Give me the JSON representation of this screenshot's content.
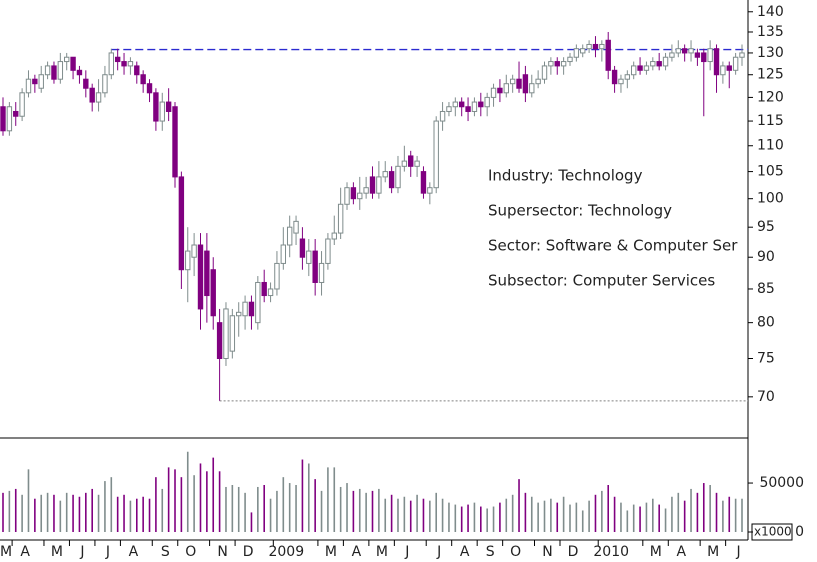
{
  "chart_data": {
    "type": "candlestick",
    "categories": [
      "M",
      null,
      null,
      "A",
      null,
      null,
      null,
      null,
      "M",
      null,
      null,
      null,
      "J",
      null,
      null,
      null,
      "J",
      null,
      null,
      null,
      "A",
      null,
      null,
      null,
      null,
      "S",
      null,
      null,
      null,
      "O",
      null,
      null,
      null,
      null,
      "N",
      null,
      null,
      null,
      "D",
      null,
      null,
      null,
      null,
      null,
      "2009",
      null,
      null,
      null,
      null,
      null,
      null,
      "M",
      null,
      null,
      null,
      "A",
      null,
      null,
      null,
      "M",
      null,
      null,
      null,
      "J",
      null,
      null,
      null,
      null,
      "J",
      null,
      null,
      null,
      "A",
      null,
      null,
      null,
      "S",
      null,
      null,
      null,
      "O",
      null,
      null,
      null,
      null,
      "N",
      null,
      null,
      null,
      "D",
      null,
      null,
      null,
      null,
      null,
      "2010",
      null,
      null,
      null,
      null,
      null,
      null,
      "M",
      null,
      null,
      null,
      "A",
      null,
      null,
      null,
      null,
      "M",
      null,
      null,
      null,
      "J",
      null
    ],
    "open": [
      118,
      113,
      117,
      116,
      121,
      124,
      122,
      125,
      127,
      124,
      128,
      129,
      126,
      124,
      122,
      119,
      121,
      125,
      129,
      128,
      127,
      127,
      125,
      123,
      121,
      115,
      119,
      118,
      104,
      88,
      90,
      92,
      91,
      88,
      80,
      75,
      76,
      81,
      81,
      83,
      80,
      86,
      84,
      85,
      89,
      92,
      94,
      93,
      89,
      91,
      86,
      89,
      93,
      94,
      99,
      102,
      100,
      101,
      104,
      101,
      104,
      105,
      102,
      106,
      108,
      106,
      105,
      101,
      102,
      115,
      117,
      118,
      119,
      118,
      117,
      119,
      118,
      120,
      122,
      121,
      123,
      124,
      125,
      121,
      123,
      124,
      127,
      128,
      127,
      128,
      129,
      130,
      131,
      132,
      131,
      133,
      126,
      123,
      124,
      125,
      127,
      126,
      127,
      128,
      127,
      129,
      130,
      131,
      130,
      130,
      130,
      128,
      131,
      125,
      127,
      126,
      129
    ],
    "high": [
      120,
      119,
      119,
      122,
      126,
      125,
      127,
      128,
      128,
      130,
      130,
      129,
      127,
      126,
      123,
      124,
      127,
      131,
      131,
      130,
      129,
      128,
      126,
      124,
      122,
      121,
      122,
      119,
      105,
      95,
      94,
      94,
      94,
      90,
      82,
      83,
      82,
      83,
      84,
      84,
      87,
      88,
      86,
      91,
      95,
      97,
      97,
      95,
      93,
      93,
      91,
      94,
      97,
      102,
      103,
      103,
      104,
      104,
      106,
      107,
      107,
      106,
      108,
      110,
      109,
      108,
      106,
      103,
      116,
      119,
      119,
      120,
      120,
      120,
      120,
      121,
      121,
      123,
      124,
      125,
      125,
      128,
      127,
      125,
      126,
      128,
      129,
      129,
      129,
      130,
      132,
      132,
      133,
      134,
      133,
      135,
      127,
      125,
      126,
      128,
      129,
      128,
      129,
      130,
      130,
      132,
      133,
      132,
      133,
      131,
      131,
      133,
      132,
      128,
      128,
      130,
      132
    ],
    "low": [
      112,
      112,
      114,
      115,
      120,
      121,
      121,
      124,
      123,
      123,
      126,
      124,
      123,
      120,
      117,
      117,
      120,
      124,
      126,
      125,
      125,
      123,
      121,
      119,
      113,
      113,
      115,
      102,
      85,
      83,
      87,
      79,
      80,
      79,
      69.5,
      74,
      75,
      78,
      79,
      79,
      79,
      83,
      83,
      84,
      88,
      90,
      92,
      88,
      87,
      84,
      84,
      88,
      92,
      93,
      98,
      99,
      98,
      100,
      100,
      100,
      103,
      101,
      101,
      105,
      104,
      104,
      100,
      99,
      101,
      113,
      116,
      116,
      116,
      115,
      116,
      116,
      116,
      118,
      119,
      120,
      121,
      121,
      119,
      120,
      122,
      123,
      125,
      125,
      125,
      127,
      128,
      129,
      130,
      129,
      128,
      124,
      121,
      121,
      122,
      124,
      125,
      125,
      126,
      126,
      126,
      128,
      129,
      128,
      128,
      127,
      116,
      126,
      121,
      123,
      122,
      125,
      127
    ],
    "close": [
      113,
      118,
      116,
      121,
      124,
      123,
      125,
      127,
      124,
      128,
      129,
      126,
      125,
      122,
      119,
      121,
      125,
      130,
      128,
      127,
      128,
      125,
      123,
      121,
      115,
      119,
      117,
      104,
      88,
      91,
      92,
      82,
      84,
      81,
      75,
      82,
      81,
      81.5,
      83,
      81,
      86,
      84,
      85,
      89,
      92,
      95,
      96,
      90,
      91,
      86,
      89,
      93,
      94,
      99,
      102,
      100,
      101,
      102,
      101,
      104,
      105,
      102,
      106,
      107,
      106,
      107,
      101,
      102,
      115,
      117,
      118,
      119,
      118,
      117,
      119,
      118,
      120,
      122,
      121,
      123,
      124,
      122,
      121,
      123,
      124,
      127,
      128,
      127,
      128,
      129,
      131,
      131,
      132,
      131,
      132,
      126,
      123,
      124,
      125,
      127,
      126,
      127,
      128,
      127,
      129,
      130,
      131,
      130,
      131,
      129,
      128,
      131,
      125,
      127,
      126,
      129,
      130
    ],
    "volume": [
      40000,
      42000,
      44000,
      38000,
      64000,
      34000,
      38000,
      40000,
      38000,
      32000,
      40000,
      38000,
      36000,
      40000,
      44000,
      38000,
      52000,
      56000,
      36000,
      38000,
      32000,
      34000,
      36000,
      34000,
      56000,
      44000,
      66000,
      64000,
      56000,
      82000,
      58000,
      70000,
      62000,
      76000,
      62000,
      46000,
      48000,
      46000,
      40000,
      20000,
      46000,
      48000,
      34000,
      42000,
      56000,
      50000,
      48000,
      74000,
      70000,
      54000,
      42000,
      66000,
      66000,
      46000,
      50000,
      42000,
      44000,
      40000,
      42000,
      44000,
      34000,
      38000,
      34000,
      36000,
      32000,
      38000,
      34000,
      32000,
      40000,
      34000,
      30000,
      28000,
      26000,
      28000,
      30000,
      26000,
      24000,
      26000,
      30000,
      34000,
      38000,
      54000,
      40000,
      36000,
      30000,
      32000,
      34000,
      30000,
      36000,
      28000,
      30000,
      22000,
      32000,
      38000,
      42000,
      48000,
      36000,
      30000,
      22000,
      28000,
      26000,
      30000,
      34000,
      28000,
      24000,
      36000,
      40000,
      32000,
      44000,
      40000,
      50000,
      48000,
      40000,
      32000,
      36000,
      34000,
      34000
    ],
    "up_color": "#7f8c8c",
    "down_color": "#800080",
    "log_scale": true,
    "ylim": [
      65,
      143
    ],
    "yticks": [
      70,
      75,
      80,
      85,
      90,
      95,
      100,
      105,
      110,
      115,
      120,
      125,
      130,
      135,
      140
    ],
    "volume_ylim": [
      0,
      96000
    ],
    "volume_yticks": [
      0,
      50000
    ],
    "volume_unit": "x1000",
    "reference_lines": [
      {
        "value": 130.8,
        "color": "#2b2bd0",
        "style": "dashed"
      },
      {
        "value": 69.5,
        "color": "#808080",
        "style": "dotted"
      }
    ],
    "annotations": [
      "Industry: Technology",
      "Supersector: Technology",
      "Sector: Software & Computer Ser",
      "Subsector: Computer Services"
    ]
  }
}
